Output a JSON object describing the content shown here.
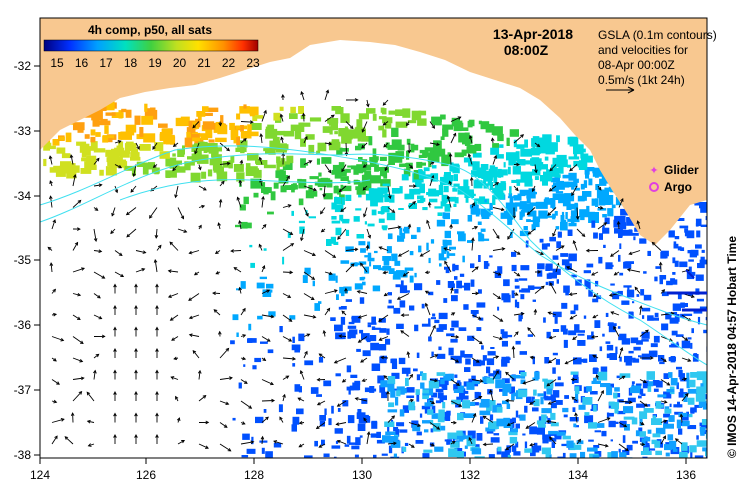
{
  "colorbar": {
    "title": "4h comp, p50, all sats",
    "ticks": [
      "15",
      "16",
      "17",
      "18",
      "19",
      "20",
      "21",
      "22",
      "23"
    ]
  },
  "header": {
    "date": "13-Apr-2018",
    "time": "08:00Z"
  },
  "info": {
    "line1": "GSLA (0.1m contours)",
    "line2": "and velocities for",
    "line3": "08-Apr 00:00Z",
    "line4": "0.5m/s (1kt 24h)"
  },
  "legend": {
    "glider": "Glider",
    "argo": "Argo",
    "glider_color": "#e040e0",
    "argo_color": "#e040e0"
  },
  "credit": "© IMOS 14-Apr-2018 04:57 Hobart Time",
  "axes": {
    "x_ticks": [
      "124",
      "126",
      "128",
      "130",
      "132",
      "134",
      "136"
    ],
    "y_ticks": [
      "-32",
      "-33",
      "-34",
      "-35",
      "-36",
      "-37",
      "-38"
    ]
  },
  "colors": {
    "land": "#f8c890",
    "ocean": "#ffffff",
    "contour": "#40e0f0"
  }
}
